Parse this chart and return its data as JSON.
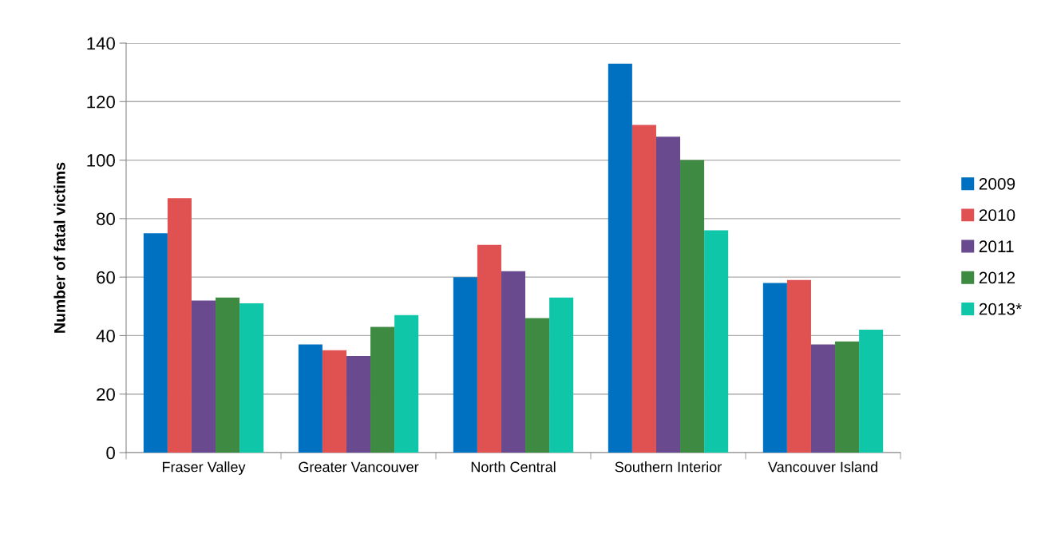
{
  "chart_data": {
    "type": "bar",
    "ylabel": "Number of fatal victims",
    "categories": [
      "Fraser Valley",
      "Greater Vancouver",
      "North Central",
      "Southern Interior",
      "Vancouver Island"
    ],
    "series": [
      {
        "name": "2009",
        "color": "#0070c0",
        "values": [
          75,
          37,
          60,
          133,
          58
        ]
      },
      {
        "name": "2010",
        "color": "#e05252",
        "values": [
          87,
          35,
          71,
          112,
          59
        ]
      },
      {
        "name": "2011",
        "color": "#6a4a8e",
        "values": [
          52,
          33,
          62,
          108,
          37
        ]
      },
      {
        "name": "2012",
        "color": "#3e8a42",
        "values": [
          53,
          43,
          46,
          100,
          38
        ]
      },
      {
        "name": "2013*",
        "color": "#10c6a8",
        "values": [
          51,
          47,
          53,
          76,
          42
        ]
      }
    ],
    "ylim": [
      0,
      140
    ],
    "yticks": [
      0,
      20,
      40,
      60,
      80,
      100,
      120,
      140
    ],
    "grid": "y",
    "legend": "right"
  }
}
